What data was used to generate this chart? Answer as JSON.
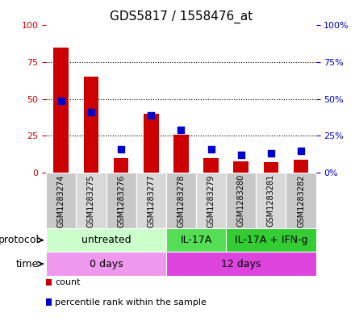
{
  "title": "GDS5817 / 1558476_at",
  "samples": [
    "GSM1283274",
    "GSM1283275",
    "GSM1283276",
    "GSM1283277",
    "GSM1283278",
    "GSM1283279",
    "GSM1283280",
    "GSM1283281",
    "GSM1283282"
  ],
  "counts": [
    85,
    65,
    10,
    40,
    26,
    10,
    8,
    7,
    9
  ],
  "percentile_ranks": [
    49,
    41,
    16,
    39,
    29,
    16,
    12,
    13,
    15
  ],
  "ylim_left": [
    0,
    100
  ],
  "ylim_right": [
    0,
    100
  ],
  "yticks": [
    0,
    25,
    50,
    75,
    100
  ],
  "bar_color": "#cc0000",
  "dot_color": "#0000cc",
  "protocol_groups": [
    {
      "label": "untreated",
      "start": 0,
      "end": 4,
      "color": "#ccffcc"
    },
    {
      "label": "IL-17A",
      "start": 4,
      "end": 6,
      "color": "#55dd55"
    },
    {
      "label": "IL-17A + IFN-g",
      "start": 6,
      "end": 9,
      "color": "#33cc33"
    }
  ],
  "time_groups": [
    {
      "label": "0 days",
      "start": 0,
      "end": 4,
      "color": "#ee99ee"
    },
    {
      "label": "12 days",
      "start": 4,
      "end": 9,
      "color": "#dd44dd"
    }
  ],
  "sample_cell_color_even": "#c8c8c8",
  "sample_cell_color_odd": "#d8d8d8",
  "protocol_label": "protocol",
  "time_label": "time",
  "legend_count_label": "count",
  "legend_pct_label": "percentile rank within the sample",
  "left_tick_color": "#cc0000",
  "right_tick_color": "#0000cc",
  "title_fontsize": 11,
  "tick_fontsize": 8,
  "label_fontsize": 9,
  "sample_fontsize": 7,
  "legend_fontsize": 8
}
